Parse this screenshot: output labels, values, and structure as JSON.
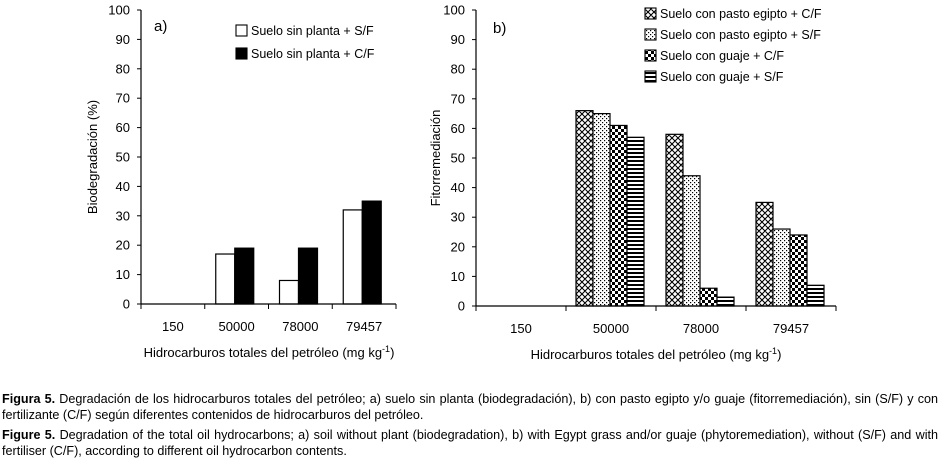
{
  "chart_data": [
    {
      "type": "bar",
      "panel_label": "a)",
      "title": "",
      "xlabel": "Hidrocarburos totales del petróleo (mg kg",
      "xlabel_sup": "-1",
      "xlabel_end": ")",
      "ylabel": "Biodegradación (%)",
      "ylim": [
        0,
        100
      ],
      "yticks": [
        0,
        10,
        20,
        30,
        40,
        50,
        60,
        70,
        80,
        90,
        100
      ],
      "categories": [
        "150",
        "50000",
        "78000",
        "79457"
      ],
      "series": [
        {
          "name": "Suelo sin planta  + S/F",
          "pattern": "white",
          "values": [
            0,
            17,
            8,
            32
          ]
        },
        {
          "name": "Suelo sin planta  + C/F",
          "pattern": "black",
          "values": [
            0,
            19,
            19,
            35
          ]
        }
      ],
      "legend_position": "top-right"
    },
    {
      "type": "bar",
      "panel_label": "b)",
      "title": "",
      "xlabel": "Hidrocarburos totales del petróleo (mg kg",
      "xlabel_sup": "-1",
      "xlabel_end": ")",
      "ylabel": "Fitorremediación",
      "ylim": [
        0,
        100
      ],
      "yticks": [
        0,
        10,
        20,
        30,
        40,
        50,
        60,
        70,
        80,
        90,
        100
      ],
      "categories": [
        "150",
        "50000",
        "78000",
        "79457"
      ],
      "series": [
        {
          "name": "Suelo con pasto egipto + C/F",
          "pattern": "crosshatch",
          "values": [
            0,
            66,
            58,
            35
          ]
        },
        {
          "name": "Suelo con pasto egipto + S/F",
          "pattern": "dots",
          "values": [
            0,
            65,
            44,
            26
          ]
        },
        {
          "name": "Suelo con guaje + C/F",
          "pattern": "checker",
          "values": [
            0,
            61,
            6,
            24
          ]
        },
        {
          "name": "Suelo con guaje + S/F",
          "pattern": "hstripes",
          "values": [
            0,
            57,
            3,
            7
          ]
        }
      ],
      "legend_position": "top-right"
    }
  ],
  "caption": {
    "es_label": "Figura 5.",
    "es_text": " Degradación de los hidrocarburos totales del petróleo; a) suelo sin planta (biodegradación), b) con pasto egipto y/o guaje (fitorremediación), sin (S/F) y con fertilizante (C/F) según diferentes contenidos de hidrocarburos del petróleo.",
    "en_label": "Figure 5.",
    "en_text": " Degradation of the total oil hydrocarbons; a) soil without plant (biodegradation), b) with Egypt grass and/or guaje (phytoremediation), without (S/F) and with fertiliser (C/F), according to different oil hydrocarbon contents."
  }
}
